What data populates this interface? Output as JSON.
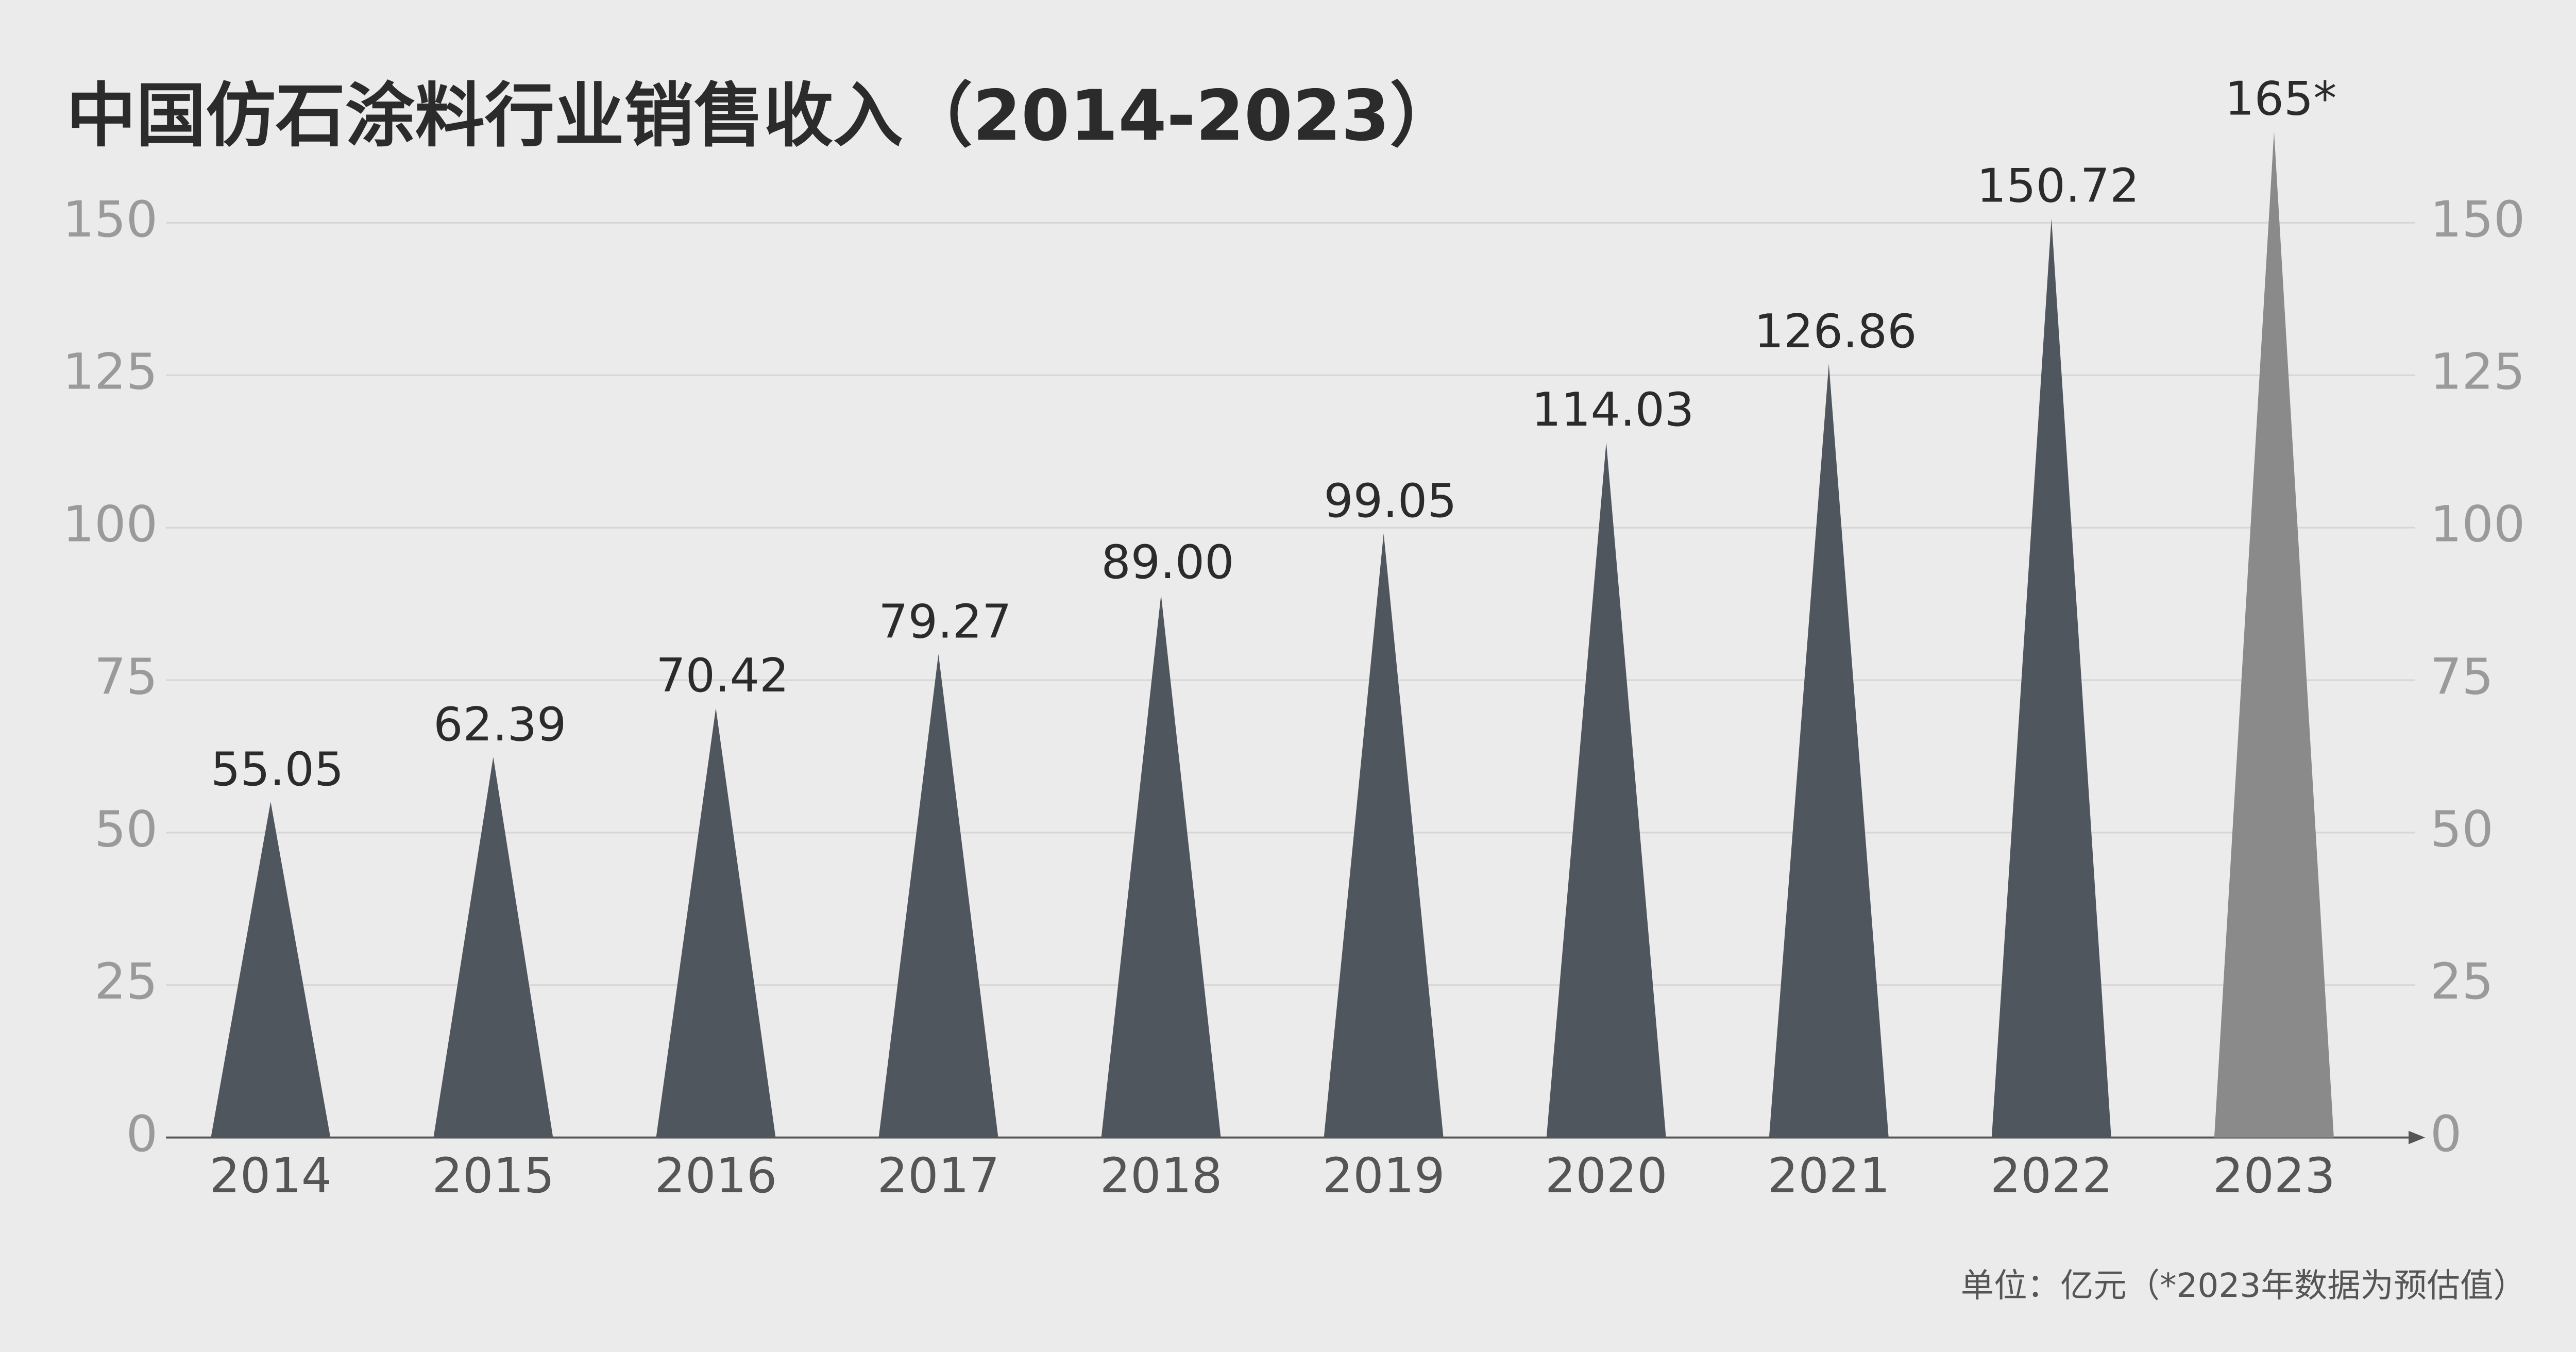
{
  "chart_data": {
    "type": "bar",
    "title": "中国仿石涂料行业销售收入（2014-2023）",
    "note": "单位：亿元（*2023年数据为预估值）",
    "categories": [
      "2014",
      "2015",
      "2016",
      "2017",
      "2018",
      "2019",
      "2020",
      "2021",
      "2022",
      "2023"
    ],
    "values": [
      55.05,
      62.39,
      70.42,
      79.27,
      89.0,
      99.05,
      114.03,
      126.86,
      150.72,
      165
    ],
    "value_labels": [
      "55.05",
      "62.39",
      "70.42",
      "79.27",
      "89.00",
      "99.05",
      "114.03",
      "126.86",
      "150.72",
      "165*"
    ],
    "colors": [
      "#4f565d",
      "#4f565d",
      "#4f565d",
      "#4f565d",
      "#4f565d",
      "#4f565d",
      "#4f565d",
      "#4f565d",
      "#4f565d",
      "#8a8a8a"
    ],
    "ylim": [
      0,
      150
    ],
    "yticks": [
      0,
      25,
      50,
      75,
      100,
      125,
      150
    ],
    "y2lim": [
      0,
      150
    ],
    "y2ticks": [
      0,
      25,
      50,
      75,
      100,
      125,
      150
    ],
    "grid": true
  }
}
